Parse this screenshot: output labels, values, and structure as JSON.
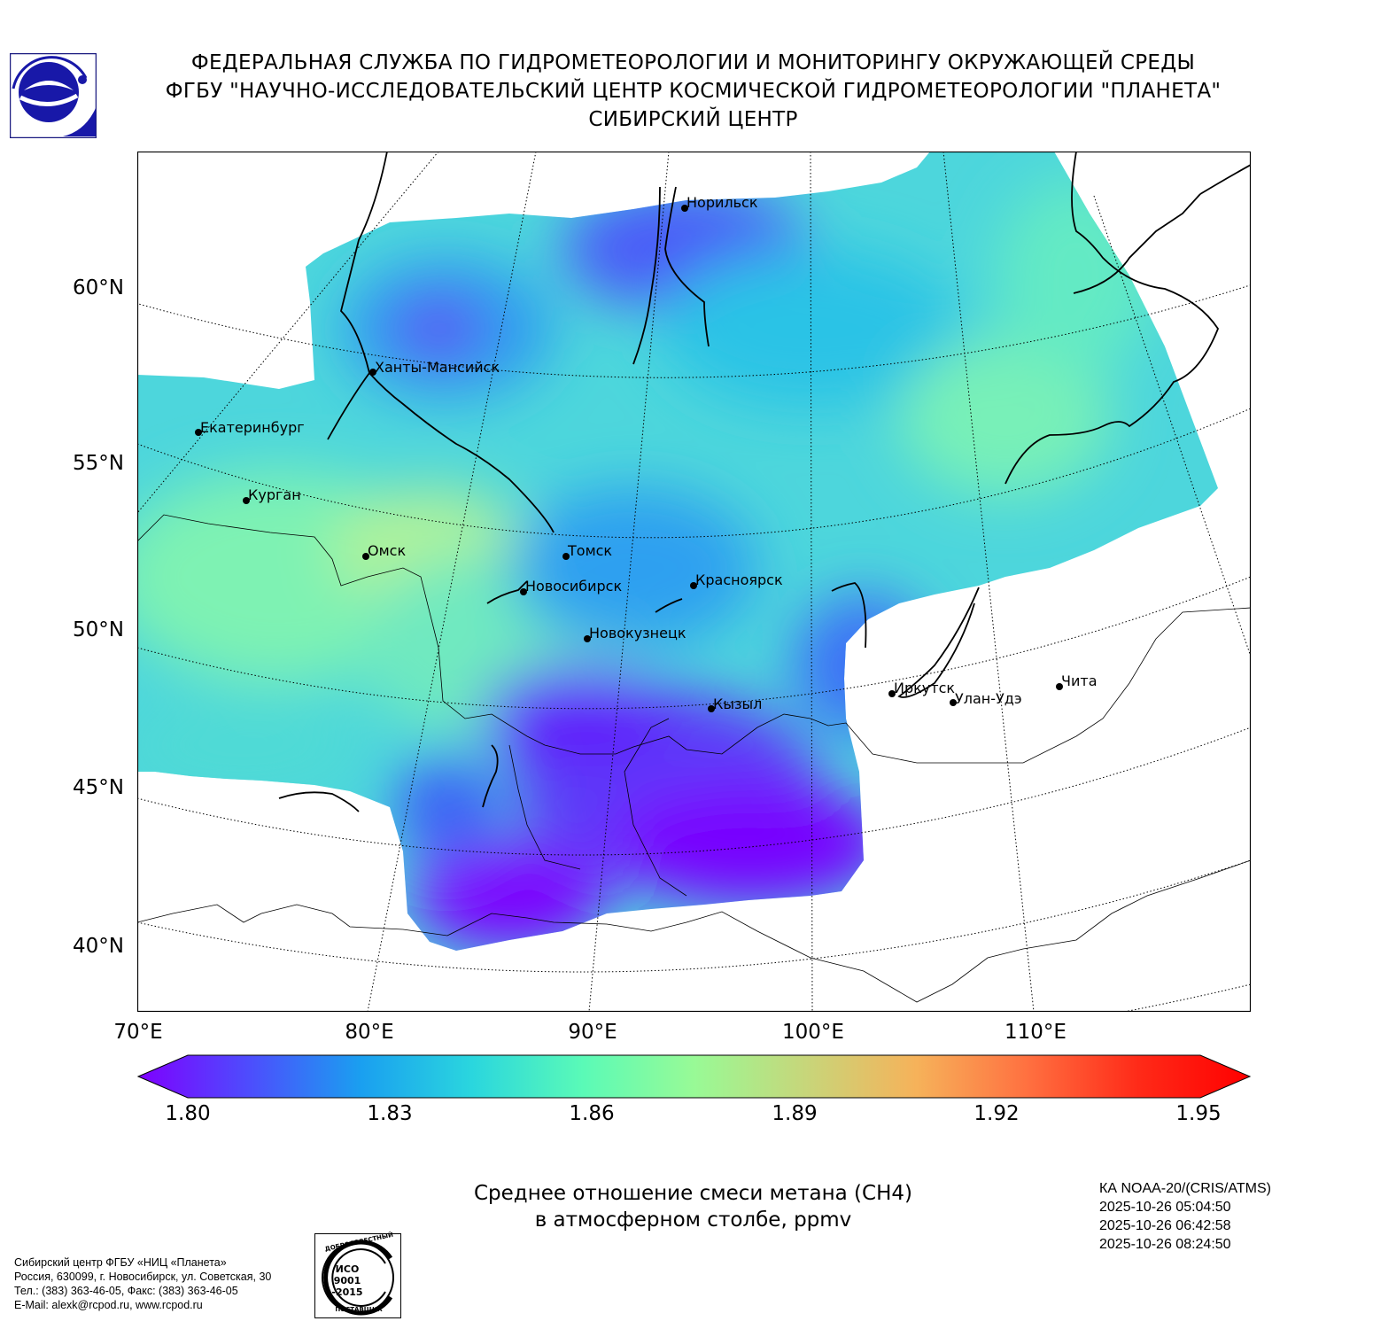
{
  "header": {
    "line1": "ФЕДЕРАЛЬНАЯ СЛУЖБА ПО ГИДРОМЕТЕОРОЛОГИИ И МОНИТОРИНГУ ОКРУЖАЮЩЕЙ СРЕДЫ",
    "line2": "ФГБУ \"НАУЧНО-ИССЛЕДОВАТЕЛЬСКИЙ ЦЕНТР КОСМИЧЕСКОЙ ГИДРОМЕТЕОРОЛОГИИ \"ПЛАНЕТА\"",
    "line3": "СИБИРСКИЙ ЦЕНТР"
  },
  "map": {
    "lat_labels": [
      "60°N",
      "55°N",
      "50°N",
      "45°N",
      "40°N"
    ],
    "lon_labels": [
      "70°E",
      "80°E",
      "90°E",
      "100°E",
      "110°E"
    ],
    "cities": [
      {
        "name": "Норильск"
      },
      {
        "name": "Ханты-Мансийск"
      },
      {
        "name": "Екатеринбург"
      },
      {
        "name": "Курган"
      },
      {
        "name": "Омск"
      },
      {
        "name": "Томск"
      },
      {
        "name": "Новосибирск"
      },
      {
        "name": "Красноярск"
      },
      {
        "name": "Новокузнецк"
      },
      {
        "name": "Кызыл"
      },
      {
        "name": "Иркутск"
      },
      {
        "name": "Улан-Удэ"
      },
      {
        "name": "Чита"
      }
    ]
  },
  "colorbar": {
    "min": 1.8,
    "max": 1.95,
    "tick_labels": [
      "1.80",
      "1.83",
      "1.86",
      "1.89",
      "1.92",
      "1.95"
    ],
    "colors": [
      "#7f00ff",
      "#4d4dfd",
      "#1a9ff0",
      "#2ad6de",
      "#5afab7",
      "#98fa96",
      "#c7d67a",
      "#f6b25a",
      "#ff7040",
      "#ff2a18",
      "#ff0000"
    ]
  },
  "title": {
    "line1": "Среднее отношение смеси метана (CH4)",
    "line2": "в атмосферном столбе, ppmv"
  },
  "satellite": {
    "line1": "КА NOAA-20/(CRIS/ATMS)",
    "line2": "2025-10-26 05:04:50",
    "line3": "2025-10-26 06:42:58",
    "line4": "2025-10-26 08:24:50"
  },
  "footer": {
    "line1": "Сибирский центр ФГБУ «НИЦ «Планета»",
    "line2": "Россия, 630099, г. Новосибирск, ул. Советская, 30",
    "line3": "Тел.: (383) 363-46-05, Факс: (383) 363-46-05",
    "line4": "E-Mail: alexk@rcpod.ru, www.rcpod.ru"
  },
  "iso_badge": {
    "top": "ДОБРОСОВЕСТНЫЙ",
    "mid1": "ИСО",
    "mid2": "9001",
    "mid3": "-2015",
    "bottom": "ПОСТАВЩИК"
  }
}
